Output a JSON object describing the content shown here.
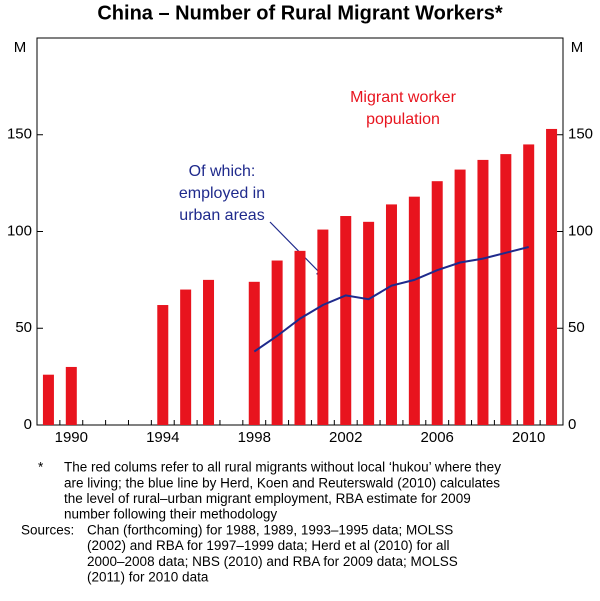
{
  "chart_data": {
    "type": "bar",
    "title": "China – Number of Rural Migrant Workers*",
    "y_unit": "M",
    "y2_unit": "M",
    "categories": [
      null,
      "1990",
      null,
      null,
      null,
      "1994",
      null,
      null,
      null,
      "1998",
      null,
      null,
      null,
      "2002",
      null,
      null,
      null,
      "2006",
      null,
      null,
      null,
      "2010",
      null
    ],
    "series": [
      {
        "type": "bar",
        "color": "#e8141e",
        "values": [
          26,
          30,
          null,
          null,
          null,
          62,
          70,
          75,
          null,
          74,
          85,
          90,
          101,
          108,
          105,
          114,
          118,
          126,
          132,
          137,
          140,
          145,
          153
        ]
      },
      {
        "type": "line",
        "color": "#1f2a8c",
        "values": [
          null,
          null,
          null,
          null,
          null,
          null,
          null,
          null,
          null,
          38,
          46,
          55,
          62,
          67,
          65,
          72,
          75,
          80,
          84,
          86,
          89,
          92,
          null
        ]
      }
    ],
    "ylim": [
      0,
      200
    ],
    "yticks": [
      0,
      50,
      100,
      150
    ],
    "y2lim": [
      0,
      200
    ],
    "y2ticks": [
      0,
      50,
      100,
      150
    ],
    "annotations": [
      {
        "color": "#e8141e",
        "lines": [
          "Migrant worker",
          "population"
        ]
      },
      {
        "color": "#1f2a8c",
        "lines": [
          "Of which:",
          "employed in",
          "urban areas"
        ]
      }
    ],
    "notes": [
      {
        "marker": "*",
        "lines": [
          "The red colums refer to all rural migrants without local ‘hukou’ where they",
          "are living; the blue line by Herd, Koen and Reuterswald (2010) calculates",
          "the level of rural–urban migrant employment, RBA estimate for 2009",
          "number following their methodology"
        ]
      },
      {
        "marker": "Sources:",
        "lines": [
          "Chan (forthcoming) for 1988, 1989, 1993–1995 data; MOLSS",
          "(2002) and RBA for 1997–1999 data; Herd et al (2010) for all",
          "2000–2008 data; NBS (2010) and RBA for 2009 data; MOLSS",
          "(2011) for 2010 data"
        ]
      }
    ]
  }
}
